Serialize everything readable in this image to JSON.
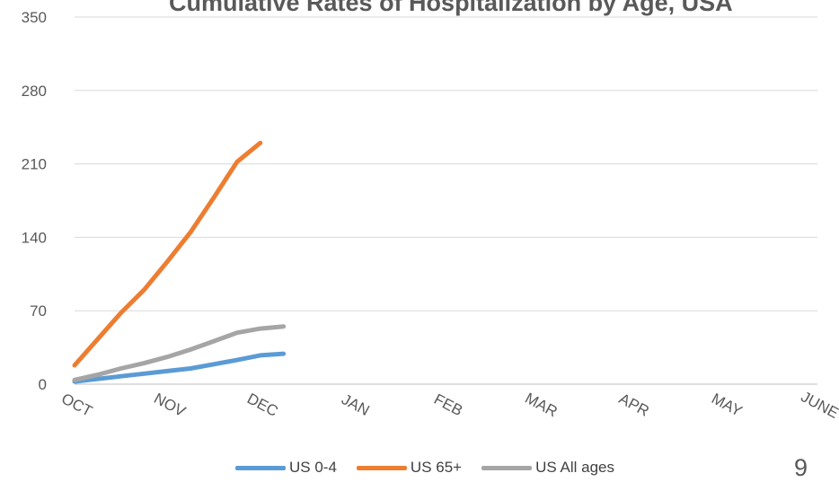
{
  "slide": {
    "number": "9"
  },
  "chart_data": {
    "type": "line",
    "title": "Cumulative Rates of Hospitalization by Age, USA",
    "categories": [
      "OCT",
      "NOV",
      "DEC",
      "JAN",
      "FEB",
      "MAR",
      "APR",
      "MAY",
      "JUNE"
    ],
    "x": [
      0,
      0.5,
      1,
      1.5,
      2,
      2.5,
      3,
      3.5,
      4,
      4.5,
      5,
      5.5,
      6,
      6.5,
      7,
      7.5,
      8
    ],
    "ylim": [
      0,
      350
    ],
    "yticks": [
      0,
      70,
      140,
      210,
      280,
      350
    ],
    "grid": true,
    "legend": "bottom",
    "series": [
      {
        "name": "US 0-4",
        "color": "#5B9BD5",
        "points": [
          [
            0,
            2.5
          ],
          [
            0.25,
            5
          ],
          [
            0.5,
            7.5
          ],
          [
            0.75,
            10
          ],
          [
            1,
            12.5
          ],
          [
            1.25,
            15
          ],
          [
            1.5,
            19
          ],
          [
            1.75,
            23
          ],
          [
            2,
            27.5
          ],
          [
            2.25,
            29
          ]
        ]
      },
      {
        "name": "US 65+",
        "color": "#ED7D31",
        "points": [
          [
            0,
            18
          ],
          [
            0.25,
            43
          ],
          [
            0.5,
            68
          ],
          [
            0.75,
            90
          ],
          [
            1,
            117
          ],
          [
            1.25,
            145
          ],
          [
            1.5,
            178
          ],
          [
            1.75,
            212
          ],
          [
            2,
            230
          ]
        ]
      },
      {
        "name": "US All ages",
        "color": "#A5A5A5",
        "points": [
          [
            0,
            4
          ],
          [
            0.25,
            9
          ],
          [
            0.5,
            15
          ],
          [
            0.75,
            20
          ],
          [
            1,
            26
          ],
          [
            1.25,
            33
          ],
          [
            1.5,
            41
          ],
          [
            1.75,
            49
          ],
          [
            2,
            53
          ],
          [
            2.25,
            55
          ]
        ]
      }
    ]
  }
}
